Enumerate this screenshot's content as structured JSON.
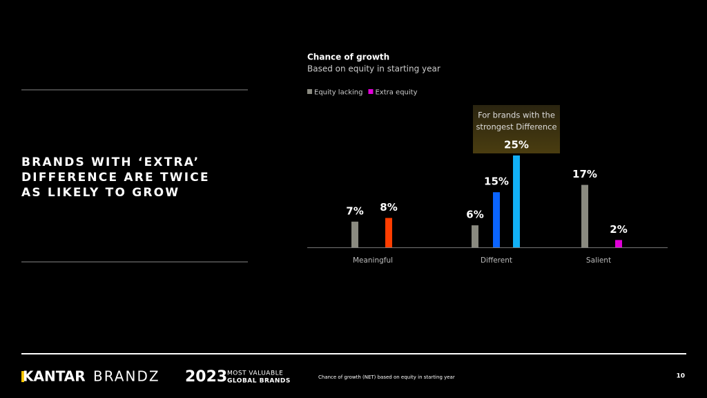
{
  "slide": {
    "headline": [
      "BRANDS WITH ‘EXTRA’",
      "DIFFERENCE ARE TWICE",
      "AS LIKELY TO GROW"
    ],
    "footer": {
      "brand": "KANTAR",
      "brand2": "BRANDZ",
      "year": "2023",
      "tagline": [
        "MOST VALUABLE",
        "GLOBAL BRANDS"
      ],
      "note": "Chance of growth (NET) based on equity in starting year",
      "page": "10"
    }
  },
  "chart_data": {
    "type": "bar",
    "title": "Chance of growth",
    "subtitle": "Based on equity in starting year",
    "categories": [
      "Meaningful",
      "Different",
      "Salient"
    ],
    "series": [
      {
        "name": "Equity lacking",
        "color": "#8a8a80",
        "values": [
          7,
          6,
          17
        ],
        "value_labels": [
          "7%",
          "6%",
          "17%"
        ]
      },
      {
        "name": "Extra equity",
        "color": "#e000d8",
        "colors": [
          "#ff3d00",
          "#0a64ff",
          "#e000d8"
        ],
        "values": [
          8,
          15,
          2
        ],
        "value_labels": [
          "8%",
          "15%",
          "2%"
        ]
      },
      {
        "color": "#12b0f5",
        "values": [
          null,
          25,
          null
        ],
        "value_labels": [
          null,
          "25%",
          null
        ]
      }
    ],
    "annotation": [
      "For brands with the",
      "strongest Difference"
    ],
    "legend": "top-left"
  }
}
